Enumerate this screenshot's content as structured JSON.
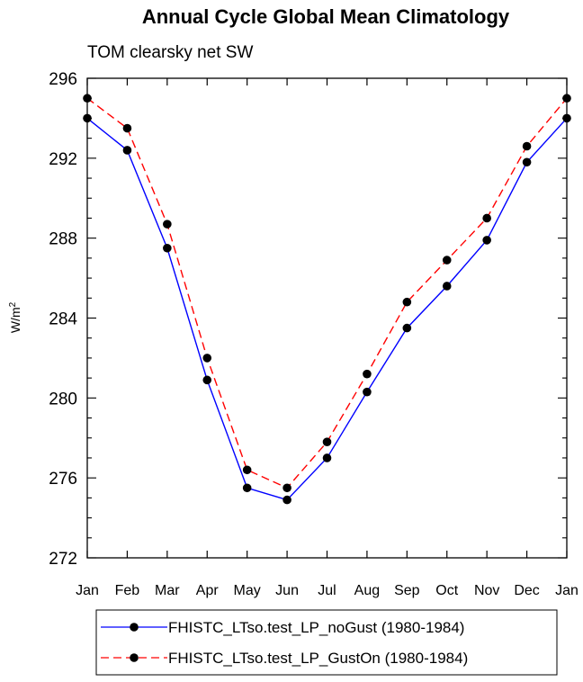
{
  "chart_data": {
    "type": "line",
    "title": "Annual Cycle Global Mean Climatology",
    "subtitle": "TOM clearsky net SW",
    "ylabel": "W/m",
    "ylabel_superscript": "2",
    "xlabel": "",
    "categories": [
      "Jan",
      "Feb",
      "Mar",
      "Apr",
      "May",
      "Jun",
      "Jul",
      "Aug",
      "Sep",
      "Oct",
      "Nov",
      "Dec",
      "Jan"
    ],
    "ylim": [
      272,
      296
    ],
    "yticks": [
      272,
      276,
      280,
      284,
      288,
      292,
      296
    ],
    "grid": false,
    "legend_position": "bottom",
    "series": [
      {
        "name": "FHISTC_LTso.test_LP_noGust (1980-1984)",
        "color": "#0000ff",
        "dash": "solid",
        "values": [
          294.0,
          292.4,
          287.5,
          280.9,
          275.5,
          274.9,
          277.0,
          280.3,
          283.5,
          285.6,
          287.9,
          291.8,
          294.0
        ]
      },
      {
        "name": "FHISTC_LTso.test_LP_GustOn (1980-1984)",
        "color": "#ff0000",
        "dash": "dashed",
        "values": [
          295.0,
          293.5,
          288.7,
          282.0,
          276.4,
          275.5,
          277.8,
          281.2,
          284.8,
          286.9,
          289.0,
          292.6,
          295.0
        ]
      }
    ]
  }
}
